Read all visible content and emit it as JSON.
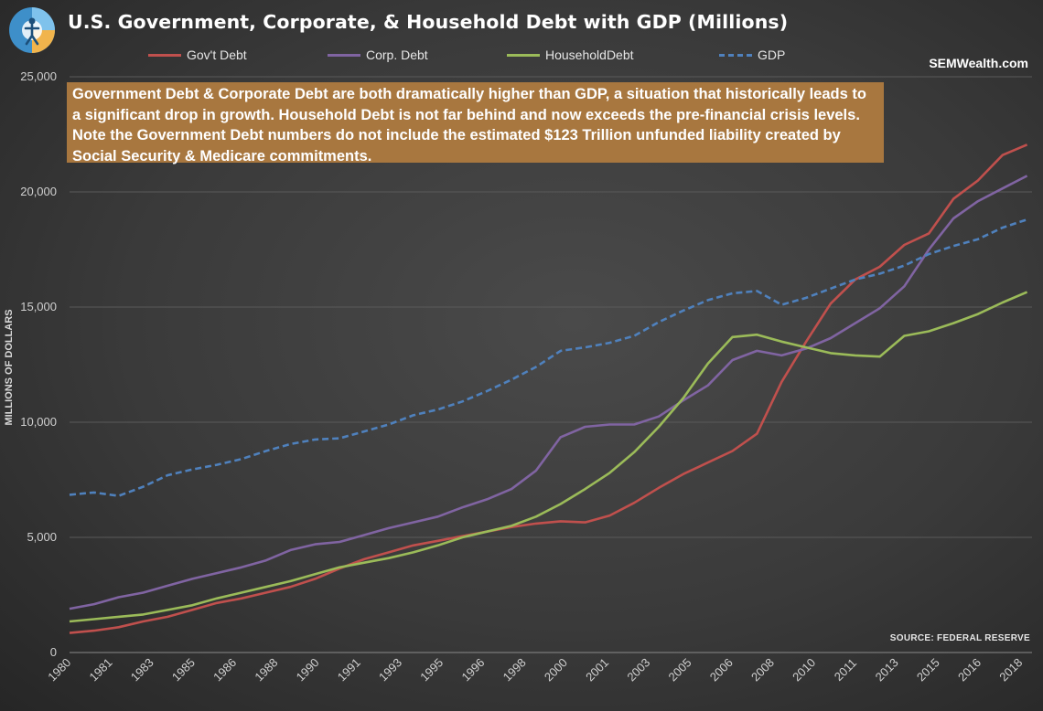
{
  "header": {
    "title": "U.S. Government, Corporate, & Household Debt with GDP (Millions)"
  },
  "brand": "SEMWealth.com",
  "note": {
    "text": "Government Debt & Corporate Debt are both dramatically higher than GDP, a situation that historically leads to a significant drop in growth. Household Debt is not far behind and now exceeds the pre-financial crisis levels. Note the Government Debt numbers do not include the estimated $123 Trillion unfunded liability created by Social Security & Medicare commitments."
  },
  "source": "SOURCE:  FEDERAL RESERVE",
  "colors": {
    "govt": "#c0504d",
    "corp": "#8064a2",
    "household": "#9bbb59",
    "gdp": "#4f81bd",
    "note_bg": "#a8773f",
    "background": "#3c3c3c"
  },
  "chart_data": {
    "type": "line",
    "title": "U.S. Government, Corporate, & Household Debt with GDP (Millions)",
    "ylabel": "MILLIONS OF DOLLARS",
    "xlabel": "",
    "ylim": [
      0,
      25000
    ],
    "xlim": [
      1980,
      2019.2
    ],
    "yticks": [
      0,
      5000,
      10000,
      15000,
      20000,
      25000
    ],
    "ytick_labels": [
      "0",
      "5,000",
      "10,000",
      "15,000",
      "20,000",
      "25,000"
    ],
    "xtick_labels": [
      "1980",
      "1981",
      "1983",
      "1985",
      "1986",
      "1988",
      "1990",
      "1991",
      "1993",
      "1995",
      "1996",
      "1998",
      "2000",
      "2001",
      "2003",
      "2005",
      "2006",
      "2008",
      "2010",
      "2011",
      "2013",
      "2015",
      "2016",
      "2018"
    ],
    "grid": "horizontal",
    "legend": "top",
    "series": [
      {
        "name": "Gov't Debt",
        "style": "solid",
        "color": "#c0504d",
        "x": [
          1980,
          1981,
          1982,
          1983,
          1984,
          1985,
          1986,
          1987,
          1988,
          1989,
          1990,
          1991,
          1992,
          1993,
          1994,
          1995,
          1996,
          1997,
          1998,
          1999,
          2000,
          2001,
          2002,
          2003,
          2004,
          2005,
          2006,
          2007,
          2008,
          2009,
          2010,
          2011,
          2012,
          2013,
          2014,
          2015,
          2016,
          2017,
          2018,
          2019
        ],
        "y": [
          850,
          950,
          1100,
          1350,
          1550,
          1850,
          2150,
          2350,
          2600,
          2850,
          3200,
          3650,
          4050,
          4350,
          4650,
          4850,
          5050,
          5250,
          5450,
          5600,
          5700,
          5650,
          5950,
          6500,
          7150,
          7750,
          8250,
          8750,
          9500,
          11750,
          13500,
          15150,
          16200,
          16750,
          17700,
          18200,
          19700,
          20500,
          21600,
          22050
        ]
      },
      {
        "name": "Corp. Debt",
        "style": "solid",
        "color": "#8064a2",
        "x": [
          1980,
          1981,
          1982,
          1983,
          1984,
          1985,
          1986,
          1987,
          1988,
          1989,
          1990,
          1991,
          1992,
          1993,
          1994,
          1995,
          1996,
          1997,
          1998,
          1999,
          2000,
          2001,
          2002,
          2003,
          2004,
          2005,
          2006,
          2007,
          2008,
          2009,
          2010,
          2011,
          2012,
          2013,
          2014,
          2015,
          2016,
          2017,
          2018,
          2019
        ],
        "y": [
          1900,
          2100,
          2400,
          2600,
          2900,
          3200,
          3450,
          3700,
          4000,
          4450,
          4700,
          4800,
          5100,
          5400,
          5650,
          5900,
          6300,
          6650,
          7100,
          7900,
          9350,
          9800,
          9900,
          9900,
          10250,
          10950,
          11600,
          12700,
          13100,
          12900,
          13200,
          13650,
          14300,
          14950,
          15900,
          17500,
          18850,
          19600,
          20150,
          20700
        ]
      },
      {
        "name": "HouseholdDebt",
        "style": "solid",
        "color": "#9bbb59",
        "x": [
          1980,
          1981,
          1982,
          1983,
          1984,
          1985,
          1986,
          1987,
          1988,
          1989,
          1990,
          1991,
          1992,
          1993,
          1994,
          1995,
          1996,
          1997,
          1998,
          1999,
          2000,
          2001,
          2002,
          2003,
          2004,
          2005,
          2006,
          2007,
          2008,
          2009,
          2010,
          2011,
          2012,
          2013,
          2014,
          2015,
          2016,
          2017,
          2018,
          2019
        ],
        "y": [
          1350,
          1450,
          1550,
          1650,
          1850,
          2050,
          2350,
          2600,
          2850,
          3100,
          3400,
          3700,
          3900,
          4100,
          4350,
          4650,
          5000,
          5250,
          5500,
          5900,
          6450,
          7100,
          7800,
          8700,
          9800,
          11050,
          12550,
          13700,
          13800,
          13500,
          13250,
          13000,
          12900,
          12850,
          13750,
          13950,
          14300,
          14700,
          15200,
          15650
        ]
      },
      {
        "name": "GDP",
        "style": "dashed",
        "color": "#4f81bd",
        "x": [
          1980,
          1981,
          1982,
          1983,
          1984,
          1985,
          1986,
          1987,
          1988,
          1989,
          1990,
          1991,
          1992,
          1993,
          1994,
          1995,
          1996,
          1997,
          1998,
          1999,
          2000,
          2001,
          2002,
          2003,
          2004,
          2005,
          2006,
          2007,
          2008,
          2009,
          2010,
          2011,
          2012,
          2013,
          2014,
          2015,
          2016,
          2017,
          2018,
          2019
        ],
        "y": [
          6850,
          6950,
          6800,
          7200,
          7700,
          7950,
          8150,
          8400,
          8750,
          9050,
          9250,
          9300,
          9600,
          9900,
          10300,
          10550,
          10900,
          11350,
          11850,
          12400,
          13100,
          13250,
          13450,
          13750,
          14350,
          14850,
          15300,
          15600,
          15700,
          15100,
          15400,
          15800,
          16200,
          16450,
          16800,
          17300,
          17650,
          17950,
          18450,
          18800
        ]
      }
    ]
  }
}
